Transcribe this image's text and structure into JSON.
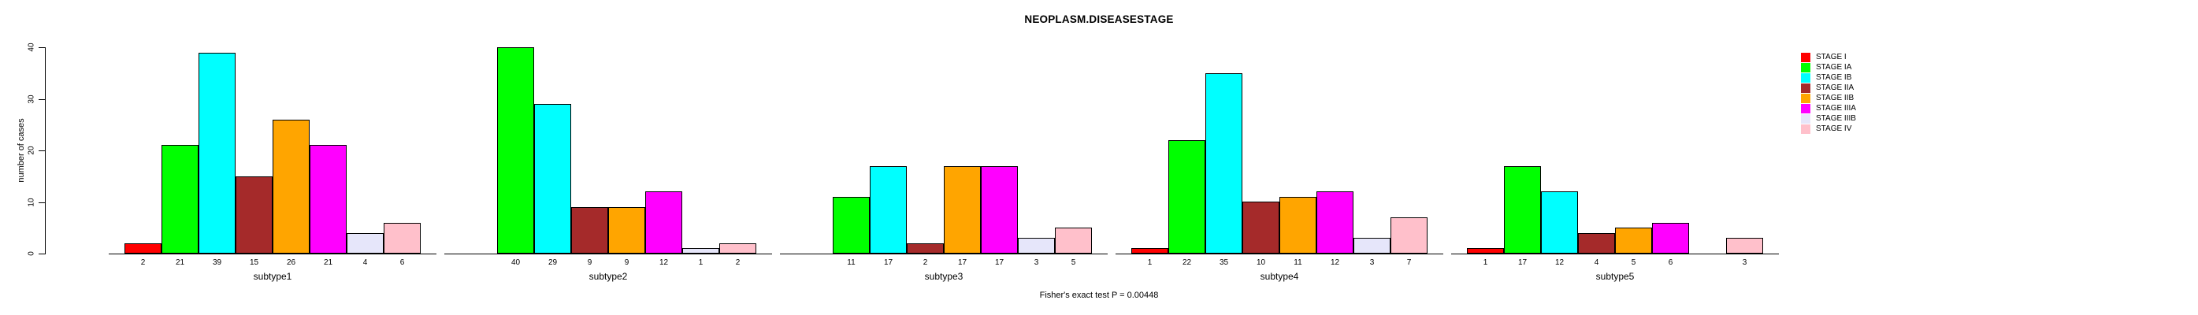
{
  "chart_data": {
    "type": "bar",
    "title": "NEOPLASM.DISEASESTAGE",
    "xlabel": "",
    "ylabel": "number of cases",
    "ylim": [
      0,
      40
    ],
    "yticks": [
      0,
      10,
      20,
      30,
      40
    ],
    "grid": false,
    "legend_position": "right-outside",
    "categories": [
      "subtype1",
      "subtype2",
      "subtype3",
      "subtype4",
      "subtype5"
    ],
    "series": [
      {
        "name": "STAGE I",
        "color": "#FF0000",
        "values": [
          2,
          0,
          0,
          1,
          1
        ]
      },
      {
        "name": "STAGE IA",
        "color": "#00FF00",
        "values": [
          21,
          40,
          11,
          22,
          17
        ]
      },
      {
        "name": "STAGE IB",
        "color": "#00FFFF",
        "values": [
          39,
          29,
          17,
          35,
          12
        ]
      },
      {
        "name": "STAGE IIA",
        "color": "#A52A2A",
        "values": [
          15,
          9,
          2,
          10,
          4
        ]
      },
      {
        "name": "STAGE IIB",
        "color": "#FFA500",
        "values": [
          26,
          9,
          17,
          11,
          5
        ]
      },
      {
        "name": "STAGE IIIA",
        "color": "#FF00FF",
        "values": [
          21,
          12,
          17,
          12,
          6
        ]
      },
      {
        "name": "STAGE IIIB",
        "color": "#E6E6FA",
        "values": [
          4,
          1,
          3,
          3,
          0
        ]
      },
      {
        "name": "STAGE IV",
        "color": "#FFC0CB",
        "values": [
          6,
          2,
          5,
          7,
          3
        ]
      }
    ],
    "value_labels": "shown under each bar; zero values have no bar and no label",
    "annotation": "Fisher's exact test P = 0.00448"
  }
}
